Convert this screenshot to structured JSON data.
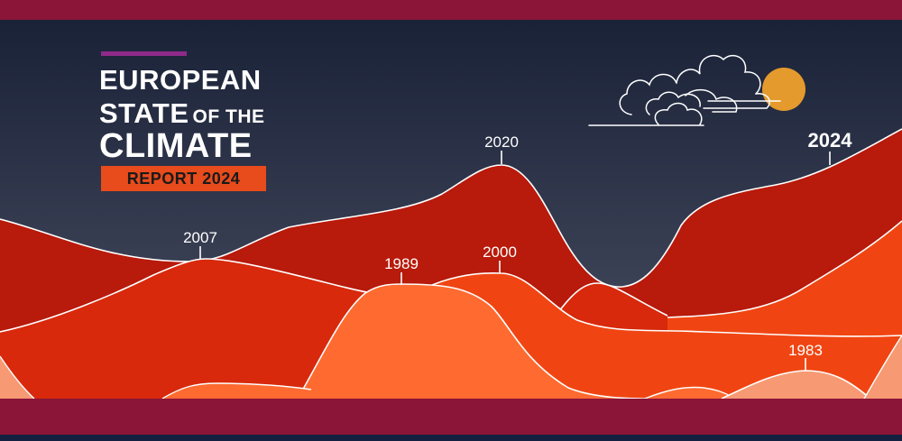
{
  "title": {
    "line1": "EUROPEAN",
    "line2_main": "STATE",
    "line2_small": "OF THE",
    "line3": "CLIMATE"
  },
  "report_badge": "REPORT 2024",
  "year_labels": {
    "y2020": "2020",
    "y2024": "2024",
    "y2007": "2007",
    "y1989": "1989",
    "y2000": "2000",
    "y1983": "1983"
  },
  "colors": {
    "frame": "#8b1538",
    "sky_top": "#1a2238",
    "sky_bottom": "#4a4f62",
    "accent_bar": "#8e2a8a",
    "report_box": "#e84b1c",
    "sun": "#e49a2c",
    "hill_dark": "#b81a0b",
    "hill_mid": "#d8290c",
    "hill_bright": "#f04512",
    "hill_orange": "#ff6a30",
    "hill_peach": "#f79a74"
  },
  "icons": [
    "cloud-icon",
    "sun-icon"
  ]
}
